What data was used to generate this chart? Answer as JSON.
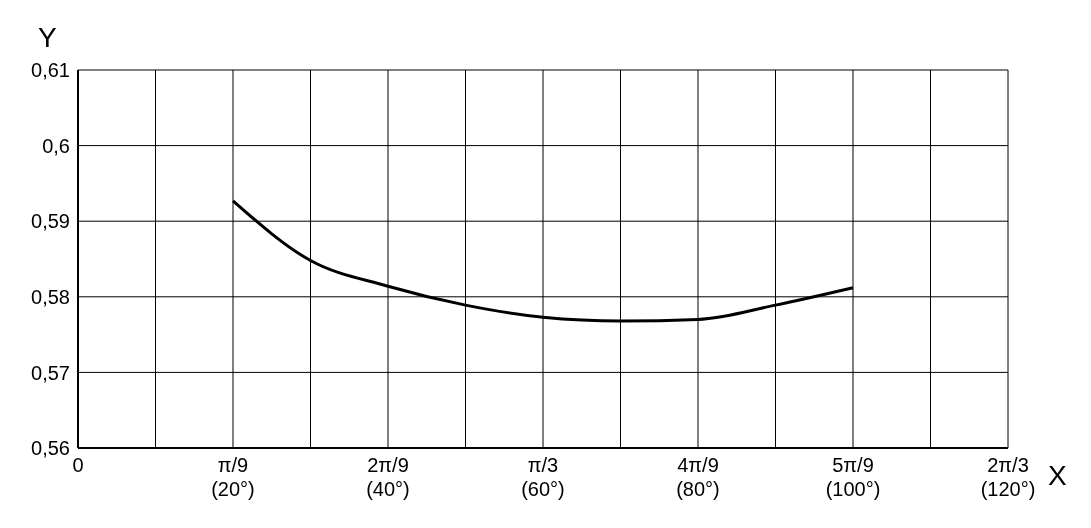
{
  "chart_data": {
    "type": "line",
    "xlabel": "X",
    "ylabel": "Y",
    "categories": [
      "0",
      null,
      "π/9\n(20°)",
      null,
      "2π/9\n(40°)",
      null,
      "π/3\n(60°)",
      null,
      "4π/9\n(80°)",
      null,
      "5π/9\n(100°)",
      null,
      "2π/3\n(120°)"
    ],
    "series": [
      {
        "color": "#000000",
        "values": [
          null,
          null,
          0.5927,
          0.5848,
          0.5814,
          0.5789,
          0.5773,
          0.5768,
          0.577,
          0.5789,
          0.5812,
          null,
          null
        ]
      }
    ],
    "ylim": [
      0.56,
      0.61
    ],
    "yticks": [
      {
        "value": 0.56,
        "label": "0,56"
      },
      {
        "value": 0.57,
        "label": "0,57"
      },
      {
        "value": 0.58,
        "label": "0,58"
      },
      {
        "value": 0.59,
        "label": "0,59"
      },
      {
        "value": 0.6,
        "label": "0,6"
      },
      {
        "value": 0.61,
        "label": "0,61"
      }
    ],
    "grid": true,
    "marker": "none",
    "line_style": "solid"
  }
}
